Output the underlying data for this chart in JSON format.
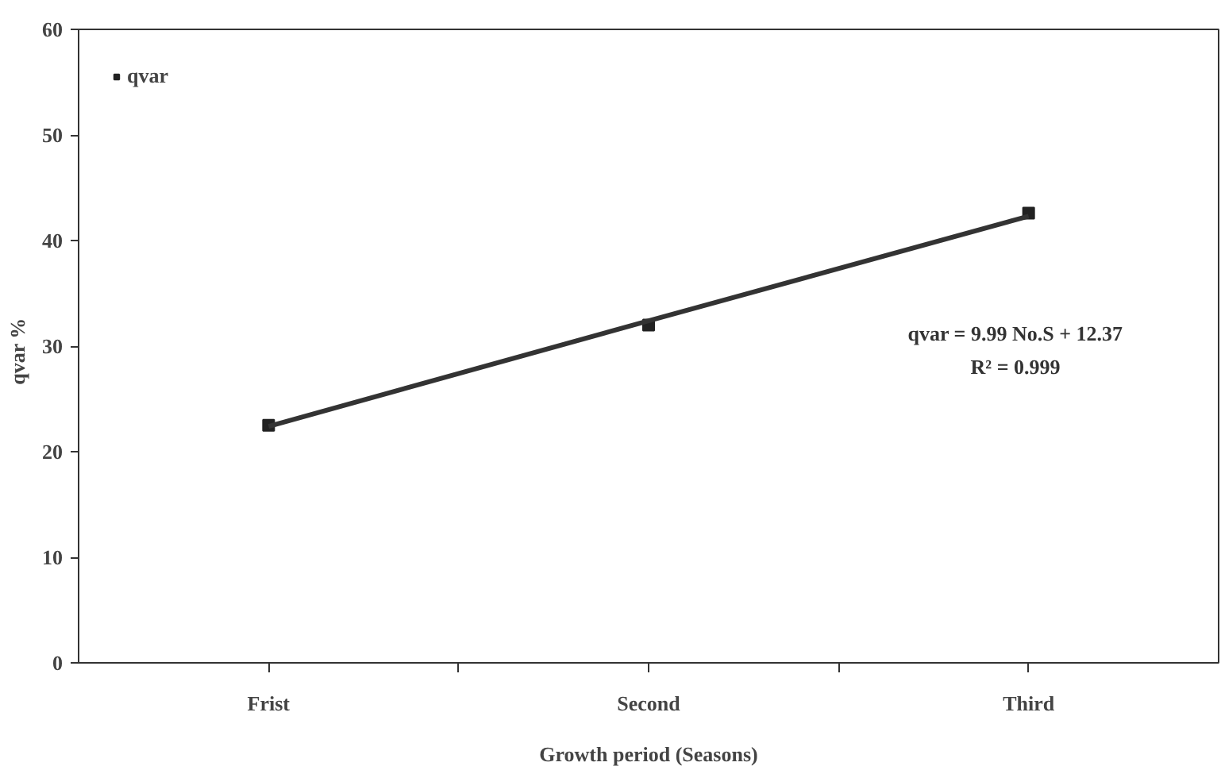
{
  "chart_data": {
    "type": "scatter",
    "xlabel": "Growth period (Seasons)",
    "ylabel": "qvar   %",
    "categories": [
      "Frist",
      "Second",
      "Third"
    ],
    "series": [
      {
        "name": "qvar",
        "color": "#222222",
        "values": [
          22.5,
          32.0,
          42.6
        ],
        "marker": "square"
      },
      {
        "type": "line",
        "color": "#333333",
        "values": [
          22.4,
          32.4,
          42.3
        ],
        "line_style": "solid"
      }
    ],
    "annotations": [
      "qvar = 9.99 No.S + 12.37",
      "R² = 0.999"
    ],
    "ylim": [
      0,
      60
    ],
    "yticks": [
      0,
      10,
      20,
      30,
      40,
      50,
      60
    ],
    "grid": false,
    "legend": "top left"
  }
}
